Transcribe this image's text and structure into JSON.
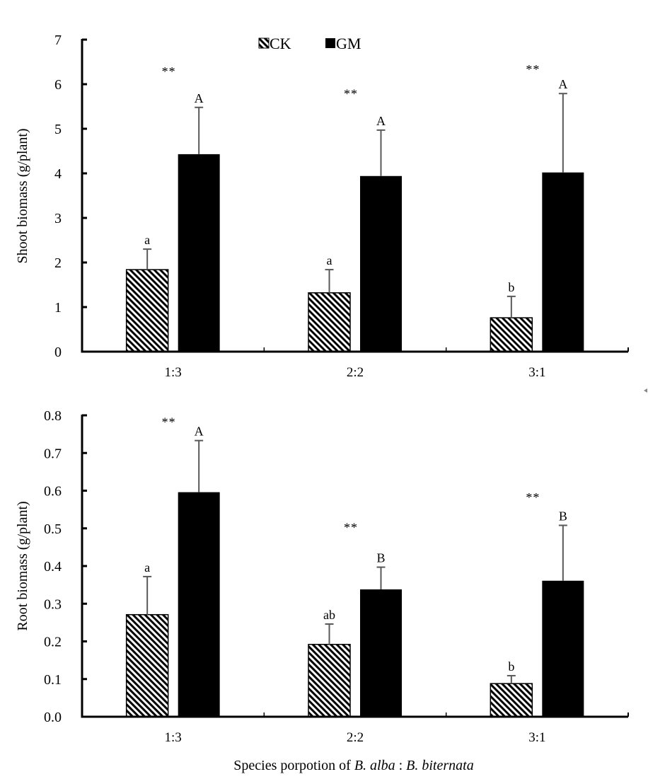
{
  "legend": {
    "items": [
      {
        "name": "CK",
        "pattern": "hatch"
      },
      {
        "name": "GM",
        "pattern": "solid"
      }
    ]
  },
  "colors": {
    "bar_fill": "#000000",
    "hatch_bg": "#ffffff",
    "error_bar": "#595959",
    "axis": "#000000"
  },
  "shared_xlabel": {
    "prefix": "Species porpotion of ",
    "species1": "B. alba",
    "separator": " : ",
    "species2": "B. biternata"
  },
  "chart_data": [
    {
      "type": "bar",
      "title": "",
      "ylabel": "Shoot biomass (g/plant)",
      "xlabel": "",
      "ylim": [
        0,
        7
      ],
      "yticks": [
        0,
        1,
        2,
        3,
        4,
        5,
        6,
        7
      ],
      "ytick_labels": [
        "0",
        "1",
        "2",
        "3",
        "4",
        "5",
        "6",
        "7"
      ],
      "categories": [
        "1:3",
        "2:2",
        "3:1"
      ],
      "series": [
        {
          "name": "CK",
          "values": [
            1.84,
            1.32,
            0.76
          ],
          "errors": [
            0.46,
            0.52,
            0.48
          ],
          "letters": [
            "a",
            "a",
            "b"
          ]
        },
        {
          "name": "GM",
          "values": [
            4.43,
            3.94,
            4.02
          ],
          "errors": [
            1.05,
            1.03,
            1.77
          ],
          "letters": [
            "A",
            "A",
            "A"
          ]
        }
      ],
      "significance": [
        "**",
        "**",
        "**"
      ],
      "significance_level": [
        6.35,
        5.85,
        6.4
      ],
      "legend_position": "top-center",
      "grid": false
    },
    {
      "type": "bar",
      "title": "",
      "ylabel": "Root biomass (g/plant)",
      "xlabel": "Species porpotion of B. alba : B. biternata",
      "ylim": [
        0,
        0.8
      ],
      "yticks": [
        0,
        0.1,
        0.2,
        0.3,
        0.4,
        0.5,
        0.6,
        0.7,
        0.8
      ],
      "ytick_labels": [
        "0.0",
        "0.1",
        "0.2",
        "0.3",
        "0.4",
        "0.5",
        "0.6",
        "0.7",
        "0.8"
      ],
      "categories": [
        "1:3",
        "2:2",
        "3:1"
      ],
      "series": [
        {
          "name": "CK",
          "values": [
            0.271,
            0.192,
            0.088
          ],
          "errors": [
            0.101,
            0.054,
            0.021
          ],
          "letters": [
            "a",
            "ab",
            "b"
          ]
        },
        {
          "name": "GM",
          "values": [
            0.596,
            0.338,
            0.361
          ],
          "errors": [
            0.137,
            0.059,
            0.147
          ],
          "letters": [
            "A",
            "B",
            "B"
          ]
        }
      ],
      "significance": [
        "**",
        "**",
        "**"
      ],
      "significance_level": [
        0.79,
        0.51,
        0.59
      ],
      "grid": false
    }
  ]
}
